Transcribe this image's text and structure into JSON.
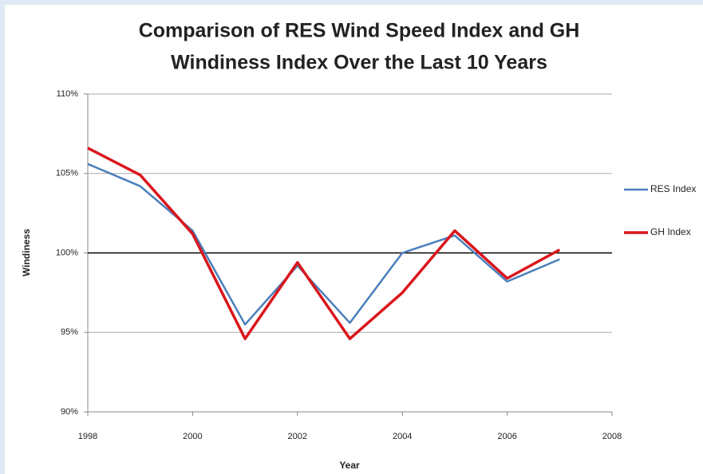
{
  "chart_data": {
    "type": "line",
    "title": [
      "Comparison of RES Wind Speed Index and GH",
      "Windiness Index Over the Last 10 Years"
    ],
    "x_label": "Year",
    "y_label": "Windiness",
    "x": [
      1998,
      1999,
      2000,
      2001,
      2002,
      2003,
      2004,
      2005,
      2006,
      2007
    ],
    "series": [
      {
        "name": "RES Index",
        "color": "#4a7ebb",
        "values": [
          105.6,
          104.2,
          101.4,
          95.5,
          99.2,
          95.6,
          100.0,
          101.1,
          98.2,
          99.6
        ]
      },
      {
        "name": "GH Index",
        "color": "#d9161c",
        "values": [
          106.6,
          104.9,
          101.2,
          94.6,
          99.4,
          94.6,
          97.5,
          101.4,
          98.4,
          100.2
        ]
      }
    ],
    "xlim": [
      1998,
      2008
    ],
    "xticks": [
      1998,
      2000,
      2002,
      2004,
      2006,
      2008
    ],
    "ylim": [
      90,
      110
    ],
    "yticks": [
      {
        "value": 90,
        "label": "90%"
      },
      {
        "value": 95,
        "label": "95%"
      },
      {
        "value": 100,
        "label": "100%"
      },
      {
        "value": 105,
        "label": "105%"
      },
      {
        "value": 110,
        "label": "110%"
      }
    ],
    "reference_line": 100,
    "grid": true,
    "legend": "right"
  }
}
